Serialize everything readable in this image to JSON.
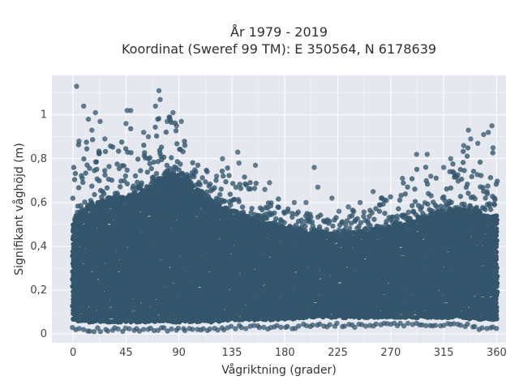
{
  "chart_data": {
    "type": "scatter",
    "title": "År 1979 - 2019",
    "subtitle": "Koordinat (Sweref 99 TM): E 350564, N 6178639",
    "xlabel": "Vågriktning (grader)",
    "ylabel": "Signifikant våghöjd (m)",
    "xlim": [
      -18,
      368
    ],
    "ylim": [
      -0.04,
      1.18
    ],
    "x_ticks": [
      0,
      45,
      90,
      135,
      180,
      225,
      270,
      315,
      360
    ],
    "x_tick_labels": [
      "0",
      "45",
      "90",
      "135",
      "180",
      "225",
      "270",
      "315",
      "360"
    ],
    "y_ticks": [
      0,
      0.2,
      0.4,
      0.6,
      0.8,
      1.0
    ],
    "y_tick_labels": [
      "0",
      "0,2",
      "0,4",
      "0,6",
      "0,8",
      "1"
    ],
    "grid": true,
    "legend": false,
    "colors": {
      "marker": "#34566d",
      "plot_bg": "#e6e8f0",
      "grid": "#ffffff"
    },
    "envelope": {
      "direction_deg": [
        0,
        10,
        20,
        30,
        45,
        60,
        75,
        90,
        105,
        120,
        135,
        150,
        165,
        180,
        200,
        225,
        250,
        270,
        290,
        315,
        330,
        345,
        360
      ],
      "lower_m": [
        0.06,
        0.05,
        0.05,
        0.05,
        0.05,
        0.05,
        0.05,
        0.05,
        0.05,
        0.05,
        0.06,
        0.06,
        0.06,
        0.06,
        0.07,
        0.07,
        0.07,
        0.07,
        0.07,
        0.07,
        0.07,
        0.06,
        0.06
      ],
      "dense_upper_m": [
        0.56,
        0.62,
        0.64,
        0.66,
        0.66,
        0.7,
        0.76,
        0.78,
        0.7,
        0.64,
        0.6,
        0.57,
        0.55,
        0.52,
        0.51,
        0.49,
        0.51,
        0.53,
        0.56,
        0.6,
        0.62,
        0.6,
        0.58
      ],
      "max_m": [
        0.88,
        0.98,
        1.01,
        0.9,
        1.02,
        0.95,
        1.13,
        1.01,
        0.84,
        0.79,
        0.83,
        0.78,
        0.7,
        0.66,
        0.61,
        0.6,
        0.65,
        0.73,
        0.82,
        0.84,
        0.91,
        0.93,
        0.91
      ]
    },
    "outliers": [
      {
        "x": 3,
        "y": 1.13
      },
      {
        "x": 5,
        "y": 0.88
      },
      {
        "x": 9,
        "y": 1.04
      },
      {
        "x": 13,
        "y": 0.98
      },
      {
        "x": 16,
        "y": 0.93
      },
      {
        "x": 19,
        "y": 1.01
      },
      {
        "x": 23,
        "y": 0.97
      },
      {
        "x": 27,
        "y": 0.89
      },
      {
        "x": 46,
        "y": 1.02
      },
      {
        "x": 49,
        "y": 1.02
      },
      {
        "x": 45,
        "y": 0.96
      },
      {
        "x": 60,
        "y": 0.92
      },
      {
        "x": 64,
        "y": 0.9
      },
      {
        "x": 70,
        "y": 1.04
      },
      {
        "x": 73,
        "y": 1.11
      },
      {
        "x": 74,
        "y": 1.07
      },
      {
        "x": 72,
        "y": 0.98
      },
      {
        "x": 80,
        "y": 0.97
      },
      {
        "x": 82,
        "y": 0.99
      },
      {
        "x": 85,
        "y": 1.01
      },
      {
        "x": 88,
        "y": 0.95
      },
      {
        "x": 92,
        "y": 0.97
      },
      {
        "x": 114,
        "y": 0.74
      },
      {
        "x": 122,
        "y": 0.72
      },
      {
        "x": 127,
        "y": 0.8
      },
      {
        "x": 140,
        "y": 0.83
      },
      {
        "x": 141,
        "y": 0.78
      },
      {
        "x": 155,
        "y": 0.77
      },
      {
        "x": 163,
        "y": 0.66
      },
      {
        "x": 167,
        "y": 0.69
      },
      {
        "x": 188,
        "y": 0.6
      },
      {
        "x": 198,
        "y": 0.6
      },
      {
        "x": 205,
        "y": 0.76
      },
      {
        "x": 208,
        "y": 0.67
      },
      {
        "x": 220,
        "y": 0.62
      },
      {
        "x": 226,
        "y": 0.56
      },
      {
        "x": 234,
        "y": 0.58
      },
      {
        "x": 244,
        "y": 0.6
      },
      {
        "x": 255,
        "y": 0.65
      },
      {
        "x": 262,
        "y": 0.62
      },
      {
        "x": 280,
        "y": 0.71
      },
      {
        "x": 292,
        "y": 0.82
      },
      {
        "x": 301,
        "y": 0.82
      },
      {
        "x": 304,
        "y": 0.72
      },
      {
        "x": 315,
        "y": 0.76
      },
      {
        "x": 321,
        "y": 0.8
      },
      {
        "x": 332,
        "y": 0.86
      },
      {
        "x": 336,
        "y": 0.93
      },
      {
        "x": 338,
        "y": 0.89
      },
      {
        "x": 344,
        "y": 0.87
      },
      {
        "x": 349,
        "y": 0.91
      },
      {
        "x": 353,
        "y": 0.92
      },
      {
        "x": 356,
        "y": 0.95
      },
      {
        "x": 357,
        "y": 0.85
      }
    ]
  }
}
